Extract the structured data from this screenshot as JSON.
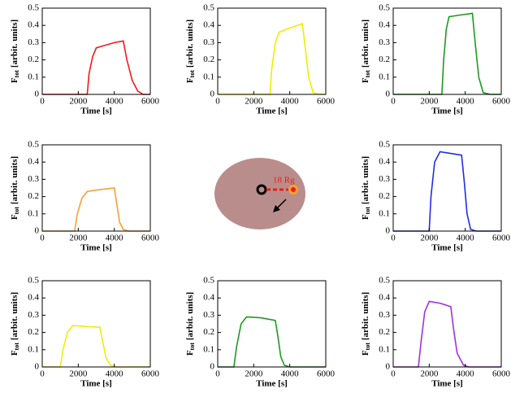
{
  "chart_data": [
    {
      "type": "line",
      "xlabel": "Time [s]",
      "ylabel": {
        "symbol": "F",
        "subscript": "tot",
        "unit": "[arbit. units]"
      },
      "xlim": [
        0,
        6000
      ],
      "xticks": [
        0,
        2000,
        4000,
        6000
      ],
      "ylim": [
        0,
        0.5
      ],
      "yticks": [
        0,
        0.1,
        0.2,
        0.3,
        0.4,
        0.5
      ],
      "x": [
        0,
        2500,
        2600,
        2800,
        3000,
        3500,
        4000,
        4500,
        4700,
        5000,
        5300,
        5600,
        6000
      ],
      "series": [
        {
          "color": "#ee1c1c",
          "values": [
            0,
            0,
            0.12,
            0.22,
            0.27,
            0.285,
            0.3,
            0.31,
            0.2,
            0.08,
            0.02,
            0,
            0
          ]
        }
      ]
    },
    {
      "type": "line",
      "xlabel": "Time [s]",
      "ylabel": {
        "symbol": "F",
        "subscript": "tot",
        "unit": "[arbit. units]"
      },
      "xlim": [
        0,
        6000
      ],
      "xticks": [
        0,
        2000,
        4000,
        6000
      ],
      "ylim": [
        0,
        0.5
      ],
      "yticks": [
        0,
        0.1,
        0.2,
        0.3,
        0.4,
        0.5
      ],
      "x": [
        0,
        2900,
        3000,
        3200,
        3400,
        4000,
        4700,
        4850,
        5050,
        5300,
        5600,
        6000
      ],
      "series": [
        {
          "color": "#eeee00",
          "values": [
            0,
            0,
            0.15,
            0.3,
            0.36,
            0.385,
            0.41,
            0.28,
            0.1,
            0.01,
            0,
            0
          ]
        }
      ]
    },
    {
      "type": "line",
      "xlabel": "Time [s]",
      "ylabel": {
        "symbol": "F",
        "subscript": "tot",
        "unit": "[arbit. units]"
      },
      "xlim": [
        0,
        6000
      ],
      "xticks": [
        0,
        2000,
        4000,
        6000
      ],
      "ylim": [
        0,
        0.5
      ],
      "yticks": [
        0,
        0.1,
        0.2,
        0.3,
        0.4,
        0.5
      ],
      "x": [
        0,
        2700,
        2800,
        2950,
        3100,
        3700,
        4400,
        4550,
        4750,
        5000,
        5400,
        6000
      ],
      "series": [
        {
          "color": "#1e9a1e",
          "values": [
            0,
            0,
            0.2,
            0.38,
            0.45,
            0.46,
            0.47,
            0.3,
            0.1,
            0.01,
            0,
            0
          ]
        }
      ]
    },
    {
      "type": "line",
      "xlabel": "Time [s]",
      "ylabel": {
        "symbol": "F",
        "subscript": "tot",
        "unit": "[arbit. units]"
      },
      "xlim": [
        0,
        6000
      ],
      "xticks": [
        0,
        2000,
        4000,
        6000
      ],
      "ylim": [
        0,
        0.5
      ],
      "yticks": [
        0,
        0.1,
        0.2,
        0.3,
        0.4,
        0.5
      ],
      "x": [
        0,
        1800,
        1950,
        2200,
        2500,
        3200,
        4000,
        4150,
        4300,
        4500,
        4800,
        6000
      ],
      "series": [
        {
          "color": "#f7a032",
          "values": [
            0,
            0,
            0.1,
            0.19,
            0.23,
            0.24,
            0.25,
            0.15,
            0.05,
            0.01,
            0,
            0
          ]
        }
      ]
    },
    {
      "type": "line",
      "xlabel": "Time [s]",
      "ylabel": {
        "symbol": "F",
        "subscript": "tot",
        "unit": "[arbit. units]"
      },
      "xlim": [
        0,
        6000
      ],
      "xticks": [
        0,
        2000,
        4000,
        6000
      ],
      "ylim": [
        0,
        0.5
      ],
      "yticks": [
        0,
        0.1,
        0.2,
        0.3,
        0.4,
        0.5
      ],
      "x": [
        0,
        2000,
        2100,
        2300,
        2600,
        3200,
        3800,
        3950,
        4100,
        4300,
        4600,
        6000
      ],
      "series": [
        {
          "color": "#1e2ee6",
          "values": [
            0,
            0,
            0.2,
            0.4,
            0.46,
            0.45,
            0.44,
            0.28,
            0.1,
            0.01,
            0,
            0
          ]
        }
      ]
    },
    {
      "type": "line",
      "xlabel": "Time [s]",
      "ylabel": {
        "symbol": "F",
        "subscript": "tot",
        "unit": "[arbit. units]"
      },
      "xlim": [
        0,
        6000
      ],
      "xticks": [
        0,
        2000,
        4000,
        6000
      ],
      "ylim": [
        0,
        0.5
      ],
      "yticks": [
        0,
        0.1,
        0.2,
        0.3,
        0.4,
        0.5
      ],
      "x": [
        0,
        1000,
        1150,
        1400,
        1700,
        2400,
        3200,
        3350,
        3550,
        3800,
        4100,
        6000
      ],
      "series": [
        {
          "color": "#f0ec10",
          "values": [
            0,
            0,
            0.1,
            0.2,
            0.24,
            0.235,
            0.23,
            0.15,
            0.05,
            0.01,
            0,
            0
          ]
        }
      ]
    },
    {
      "type": "line",
      "xlabel": "Time [s]",
      "ylabel": {
        "symbol": "F",
        "subscript": "tot",
        "unit": "[arbit. units]"
      },
      "xlim": [
        0,
        6000
      ],
      "xticks": [
        0,
        2000,
        4000,
        6000
      ],
      "ylim": [
        0,
        0.5
      ],
      "yticks": [
        0,
        0.1,
        0.2,
        0.3,
        0.4,
        0.5
      ],
      "x": [
        0,
        900,
        1050,
        1300,
        1600,
        2400,
        3200,
        3350,
        3500,
        3700,
        4000,
        6000
      ],
      "series": [
        {
          "color": "#1e9a1e",
          "values": [
            0,
            0,
            0.12,
            0.25,
            0.29,
            0.285,
            0.27,
            0.17,
            0.06,
            0.01,
            0,
            0
          ]
        }
      ]
    },
    {
      "type": "line",
      "xlabel": "Time [s]",
      "ylabel": {
        "symbol": "F",
        "subscript": "tot",
        "unit": "[arbit. units]"
      },
      "xlim": [
        0,
        6000
      ],
      "xticks": [
        0,
        2000,
        4000,
        6000
      ],
      "ylim": [
        0,
        0.5
      ],
      "yticks": [
        0,
        0.1,
        0.2,
        0.3,
        0.4,
        0.5
      ],
      "x": [
        0,
        1400,
        1550,
        1750,
        2000,
        2600,
        3200,
        3350,
        3550,
        3900,
        4200,
        6000
      ],
      "series": [
        {
          "color": "#a330d8",
          "values": [
            0,
            0,
            0.15,
            0.32,
            0.38,
            0.37,
            0.35,
            0.22,
            0.08,
            0.01,
            0,
            0
          ]
        }
      ]
    }
  ],
  "diagram": {
    "label": "18 Rg"
  }
}
